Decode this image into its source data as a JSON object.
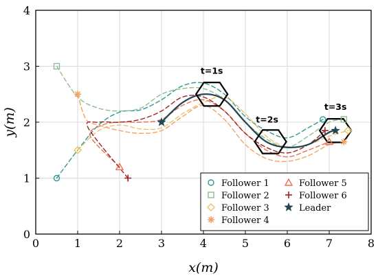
{
  "chart_data": {
    "type": "line",
    "title": "",
    "xlabel": "x(m)",
    "ylabel": "y(m)",
    "xlim": [
      0,
      8
    ],
    "ylim": [
      0,
      4
    ],
    "xticks": [
      "0",
      "1",
      "2",
      "3",
      "4",
      "5",
      "6",
      "7",
      "8"
    ],
    "yticks": [
      "0",
      "1",
      "2",
      "3",
      "4"
    ],
    "grid": true,
    "legend_position": "bottom-right",
    "annotations": [
      "t=1s",
      "t=2s",
      "t=3s"
    ],
    "formation_markers": [
      {
        "label": "t=1s",
        "x": 4.2,
        "y": 2.5
      },
      {
        "label": "t=2s",
        "x": 5.6,
        "y": 1.65
      },
      {
        "label": "t=3s",
        "x": 7.15,
        "y": 1.85
      }
    ],
    "series": [
      {
        "name": "Follower 1",
        "color": "#2a9d8f",
        "marker": "circle",
        "x": [
          0.5,
          1.0,
          1.5,
          2.0,
          2.5,
          3.0,
          3.5,
          4.0,
          4.5,
          5.0,
          5.5,
          6.0,
          6.5,
          6.85
        ],
        "y": [
          1.0,
          1.5,
          1.95,
          2.18,
          2.22,
          2.4,
          2.65,
          2.7,
          2.5,
          2.1,
          1.85,
          1.72,
          1.9,
          2.05
        ]
      },
      {
        "name": "Follower 2",
        "color": "#8fbc8f",
        "marker": "square",
        "x": [
          0.5,
          1.0,
          1.5,
          2.0,
          2.5,
          3.0,
          3.5,
          4.0,
          4.5,
          5.0,
          5.5,
          6.0,
          6.5,
          7.0,
          7.35
        ],
        "y": [
          3.0,
          2.45,
          2.25,
          2.2,
          2.25,
          2.5,
          2.6,
          2.6,
          2.4,
          2.0,
          1.7,
          1.55,
          1.75,
          2.0,
          2.05
        ]
      },
      {
        "name": "Follower 3",
        "color": "#e9c46a",
        "marker": "diamond",
        "x": [
          1.0,
          1.5,
          2.0,
          2.5,
          3.0,
          3.5,
          4.0,
          4.5,
          5.0,
          5.5,
          6.0,
          6.5,
          7.0,
          7.45
        ],
        "y": [
          1.5,
          1.85,
          1.95,
          1.88,
          1.9,
          2.15,
          2.35,
          2.45,
          2.15,
          1.75,
          1.55,
          1.6,
          1.75,
          1.85
        ]
      },
      {
        "name": "Follower 4",
        "color": "#f4a261",
        "marker": "asterisk",
        "x": [
          1.0,
          1.2,
          1.5,
          2.0,
          2.5,
          3.0,
          3.5,
          4.0,
          4.5,
          5.0,
          5.5,
          6.0,
          6.5,
          7.0,
          7.35
        ],
        "y": [
          2.5,
          2.05,
          1.95,
          1.85,
          1.8,
          1.85,
          2.1,
          2.3,
          2.05,
          1.6,
          1.35,
          1.3,
          1.4,
          1.6,
          1.65
        ]
      },
      {
        "name": "Follower 5",
        "color": "#e76f51",
        "marker": "triangle",
        "x": [
          2.0,
          1.3,
          1.6,
          2.0,
          2.5,
          3.0,
          3.5,
          4.0,
          4.5,
          5.0,
          5.5,
          6.0,
          6.5,
          7.0
        ],
        "y": [
          1.2,
          1.75,
          1.95,
          2.0,
          2.0,
          2.05,
          2.3,
          2.4,
          2.2,
          1.8,
          1.5,
          1.38,
          1.5,
          1.65
        ]
      },
      {
        "name": "Follower 6",
        "color": "#9b2226",
        "marker": "plus",
        "x": [
          2.2,
          1.25,
          1.5,
          2.0,
          2.5,
          3.0,
          3.5,
          4.0,
          4.5,
          5.0,
          5.5,
          6.0,
          6.5,
          6.9
        ],
        "y": [
          1.0,
          1.9,
          2.0,
          2.0,
          2.05,
          2.2,
          2.45,
          2.45,
          2.2,
          1.8,
          1.55,
          1.45,
          1.6,
          1.85
        ]
      },
      {
        "name": "Leader",
        "color": "#264653",
        "marker": "star",
        "x": [
          3.0,
          3.5,
          4.0,
          4.5,
          5.0,
          5.5,
          6.0,
          6.5,
          7.0,
          7.15
        ],
        "y": [
          2.0,
          2.35,
          2.5,
          2.4,
          2.0,
          1.65,
          1.55,
          1.6,
          1.82,
          1.85
        ]
      }
    ]
  }
}
